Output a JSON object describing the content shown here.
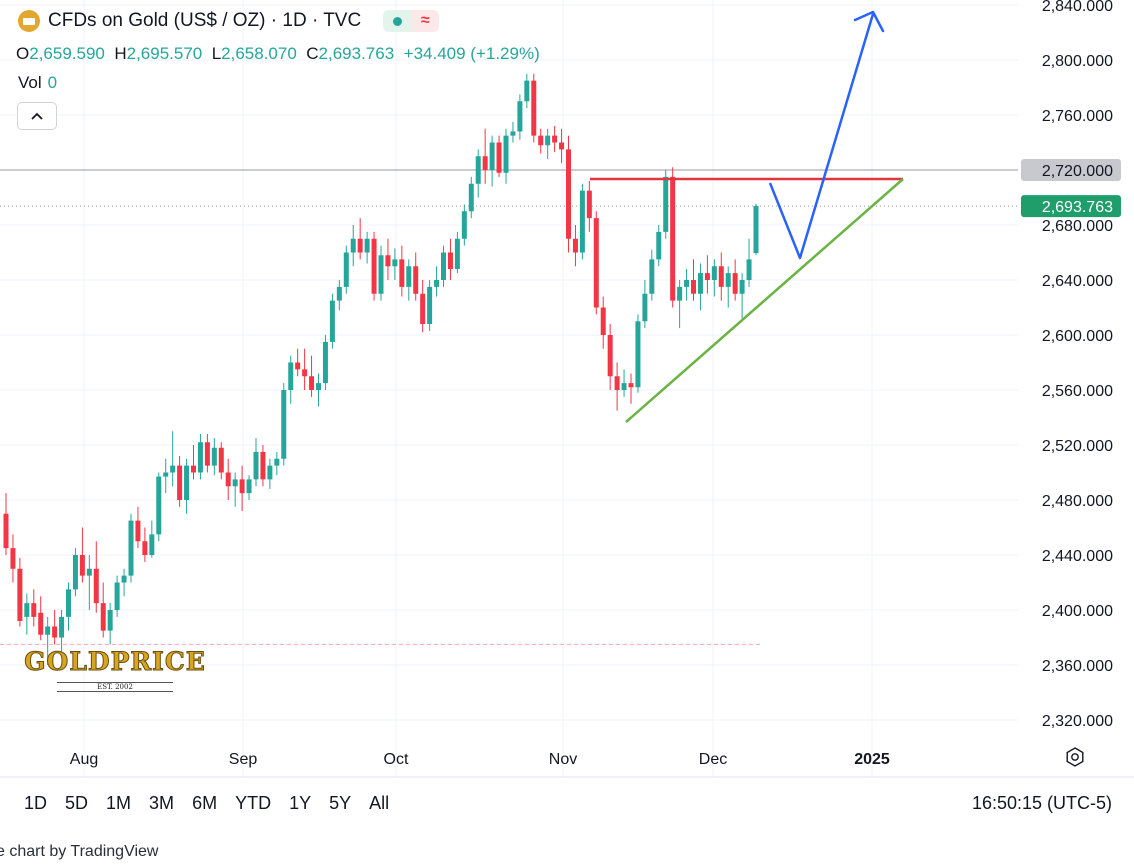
{
  "header": {
    "title": "CFDs on Gold (US$ / OZ) · 1D · TVC",
    "ohlc": {
      "o_label": "O",
      "o": "2,659.590",
      "h_label": "H",
      "h": "2,695.570",
      "l_label": "L",
      "l": "2,658.070",
      "c_label": "C",
      "c": "2,693.763",
      "change": "+34.409 (+1.29%)"
    },
    "vol_label": "Vol",
    "vol_value": "0"
  },
  "colors": {
    "up": "#26a69a",
    "down": "#f23645",
    "blue_line": "#2962ff",
    "green_line": "#6ab344",
    "red_line": "#e0363f"
  },
  "logo": {
    "name": "GOLDPRICE",
    "est": "EST. 2002"
  },
  "ranges": [
    "1D",
    "5D",
    "1M",
    "3M",
    "6M",
    "YTD",
    "1Y",
    "5Y",
    "All"
  ],
  "clock": "16:50:15 (UTC-5)",
  "credit": "e chart by TradingView",
  "chart_data": {
    "type": "candlestick",
    "ylim": [
      2300,
      2840
    ],
    "y_ticks": [
      "2,320.000",
      "2,360.000",
      "2,400.000",
      "2,440.000",
      "2,480.000",
      "2,520.000",
      "2,560.000",
      "2,600.000",
      "2,640.000",
      "2,680.000",
      "2,720.000",
      "2,760.000",
      "2,800.000",
      "2,840.000"
    ],
    "x_labels": [
      "Aug",
      "Sep",
      "Oct",
      "Nov",
      "Dec",
      "2025"
    ],
    "price_labels": [
      {
        "value": 2720.0,
        "text": "2,720.000",
        "style": "gray"
      },
      {
        "value": 2693.763,
        "text": "2,693.763",
        "style": "green"
      }
    ],
    "horizontal_lines": [
      {
        "value": 2720,
        "style": "gray-solid"
      },
      {
        "value": 2693.763,
        "style": "gray-dotted"
      },
      {
        "value": 2375,
        "style": "pink-dashed"
      }
    ],
    "candles": [
      {
        "o": 2470,
        "h": 2485,
        "l": 2440,
        "c": 2445
      },
      {
        "o": 2445,
        "h": 2455,
        "l": 2420,
        "c": 2430
      },
      {
        "o": 2430,
        "h": 2438,
        "l": 2388,
        "c": 2392
      },
      {
        "o": 2395,
        "h": 2412,
        "l": 2382,
        "c": 2405
      },
      {
        "o": 2405,
        "h": 2415,
        "l": 2388,
        "c": 2395
      },
      {
        "o": 2398,
        "h": 2410,
        "l": 2378,
        "c": 2382
      },
      {
        "o": 2382,
        "h": 2395,
        "l": 2360,
        "c": 2388
      },
      {
        "o": 2388,
        "h": 2400,
        "l": 2375,
        "c": 2380
      },
      {
        "o": 2380,
        "h": 2400,
        "l": 2370,
        "c": 2395
      },
      {
        "o": 2395,
        "h": 2420,
        "l": 2385,
        "c": 2415
      },
      {
        "o": 2415,
        "h": 2445,
        "l": 2410,
        "c": 2440
      },
      {
        "o": 2440,
        "h": 2460,
        "l": 2420,
        "c": 2425
      },
      {
        "o": 2425,
        "h": 2440,
        "l": 2400,
        "c": 2430
      },
      {
        "o": 2430,
        "h": 2450,
        "l": 2398,
        "c": 2405
      },
      {
        "o": 2405,
        "h": 2420,
        "l": 2380,
        "c": 2385
      },
      {
        "o": 2385,
        "h": 2405,
        "l": 2375,
        "c": 2400
      },
      {
        "o": 2400,
        "h": 2425,
        "l": 2395,
        "c": 2420
      },
      {
        "o": 2420,
        "h": 2430,
        "l": 2410,
        "c": 2425
      },
      {
        "o": 2425,
        "h": 2470,
        "l": 2420,
        "c": 2465
      },
      {
        "o": 2465,
        "h": 2475,
        "l": 2445,
        "c": 2450
      },
      {
        "o": 2450,
        "h": 2460,
        "l": 2435,
        "c": 2440
      },
      {
        "o": 2440,
        "h": 2465,
        "l": 2438,
        "c": 2455
      },
      {
        "o": 2455,
        "h": 2500,
        "l": 2450,
        "c": 2497
      },
      {
        "o": 2497,
        "h": 2510,
        "l": 2485,
        "c": 2500
      },
      {
        "o": 2500,
        "h": 2530,
        "l": 2490,
        "c": 2505
      },
      {
        "o": 2505,
        "h": 2512,
        "l": 2475,
        "c": 2480
      },
      {
        "o": 2480,
        "h": 2510,
        "l": 2470,
        "c": 2505
      },
      {
        "o": 2505,
        "h": 2520,
        "l": 2495,
        "c": 2500
      },
      {
        "o": 2500,
        "h": 2528,
        "l": 2495,
        "c": 2522
      },
      {
        "o": 2522,
        "h": 2528,
        "l": 2500,
        "c": 2505
      },
      {
        "o": 2505,
        "h": 2525,
        "l": 2498,
        "c": 2518
      },
      {
        "o": 2518,
        "h": 2522,
        "l": 2495,
        "c": 2500
      },
      {
        "o": 2500,
        "h": 2510,
        "l": 2480,
        "c": 2490
      },
      {
        "o": 2490,
        "h": 2500,
        "l": 2475,
        "c": 2495
      },
      {
        "o": 2495,
        "h": 2505,
        "l": 2472,
        "c": 2485
      },
      {
        "o": 2485,
        "h": 2498,
        "l": 2480,
        "c": 2495
      },
      {
        "o": 2495,
        "h": 2525,
        "l": 2490,
        "c": 2515
      },
      {
        "o": 2515,
        "h": 2520,
        "l": 2490,
        "c": 2495
      },
      {
        "o": 2495,
        "h": 2510,
        "l": 2488,
        "c": 2505
      },
      {
        "o": 2505,
        "h": 2515,
        "l": 2498,
        "c": 2510
      },
      {
        "o": 2510,
        "h": 2565,
        "l": 2505,
        "c": 2560
      },
      {
        "o": 2560,
        "h": 2585,
        "l": 2550,
        "c": 2580
      },
      {
        "o": 2580,
        "h": 2590,
        "l": 2570,
        "c": 2575
      },
      {
        "o": 2575,
        "h": 2590,
        "l": 2560,
        "c": 2570
      },
      {
        "o": 2570,
        "h": 2585,
        "l": 2555,
        "c": 2560
      },
      {
        "o": 2560,
        "h": 2572,
        "l": 2548,
        "c": 2565
      },
      {
        "o": 2565,
        "h": 2600,
        "l": 2560,
        "c": 2595
      },
      {
        "o": 2595,
        "h": 2630,
        "l": 2590,
        "c": 2625
      },
      {
        "o": 2625,
        "h": 2640,
        "l": 2618,
        "c": 2635
      },
      {
        "o": 2635,
        "h": 2665,
        "l": 2630,
        "c": 2660
      },
      {
        "o": 2660,
        "h": 2680,
        "l": 2650,
        "c": 2670
      },
      {
        "o": 2670,
        "h": 2685,
        "l": 2655,
        "c": 2660
      },
      {
        "o": 2660,
        "h": 2675,
        "l": 2652,
        "c": 2670
      },
      {
        "o": 2670,
        "h": 2675,
        "l": 2625,
        "c": 2630
      },
      {
        "o": 2630,
        "h": 2665,
        "l": 2625,
        "c": 2658
      },
      {
        "o": 2658,
        "h": 2670,
        "l": 2640,
        "c": 2650
      },
      {
        "o": 2650,
        "h": 2663,
        "l": 2640,
        "c": 2655
      },
      {
        "o": 2655,
        "h": 2665,
        "l": 2628,
        "c": 2635
      },
      {
        "o": 2635,
        "h": 2655,
        "l": 2625,
        "c": 2650
      },
      {
        "o": 2650,
        "h": 2660,
        "l": 2625,
        "c": 2630
      },
      {
        "o": 2630,
        "h": 2640,
        "l": 2602,
        "c": 2608
      },
      {
        "o": 2608,
        "h": 2640,
        "l": 2603,
        "c": 2635
      },
      {
        "o": 2635,
        "h": 2650,
        "l": 2628,
        "c": 2640
      },
      {
        "o": 2640,
        "h": 2665,
        "l": 2635,
        "c": 2660
      },
      {
        "o": 2660,
        "h": 2670,
        "l": 2640,
        "c": 2648
      },
      {
        "o": 2648,
        "h": 2675,
        "l": 2645,
        "c": 2670
      },
      {
        "o": 2670,
        "h": 2695,
        "l": 2665,
        "c": 2690
      },
      {
        "o": 2690,
        "h": 2715,
        "l": 2685,
        "c": 2710
      },
      {
        "o": 2710,
        "h": 2735,
        "l": 2700,
        "c": 2730
      },
      {
        "o": 2730,
        "h": 2750,
        "l": 2710,
        "c": 2720
      },
      {
        "o": 2720,
        "h": 2745,
        "l": 2708,
        "c": 2740
      },
      {
        "o": 2740,
        "h": 2745,
        "l": 2715,
        "c": 2718
      },
      {
        "o": 2718,
        "h": 2750,
        "l": 2710,
        "c": 2745
      },
      {
        "o": 2745,
        "h": 2755,
        "l": 2740,
        "c": 2748
      },
      {
        "o": 2748,
        "h": 2775,
        "l": 2742,
        "c": 2770
      },
      {
        "o": 2770,
        "h": 2790,
        "l": 2765,
        "c": 2785
      },
      {
        "o": 2785,
        "h": 2790,
        "l": 2740,
        "c": 2745
      },
      {
        "o": 2745,
        "h": 2750,
        "l": 2732,
        "c": 2738
      },
      {
        "o": 2738,
        "h": 2750,
        "l": 2728,
        "c": 2745
      },
      {
        "o": 2745,
        "h": 2752,
        "l": 2733,
        "c": 2740
      },
      {
        "o": 2740,
        "h": 2750,
        "l": 2725,
        "c": 2735
      },
      {
        "o": 2735,
        "h": 2745,
        "l": 2660,
        "c": 2670
      },
      {
        "o": 2670,
        "h": 2680,
        "l": 2650,
        "c": 2660
      },
      {
        "o": 2660,
        "h": 2710,
        "l": 2655,
        "c": 2705
      },
      {
        "o": 2705,
        "h": 2712,
        "l": 2675,
        "c": 2685
      },
      {
        "o": 2685,
        "h": 2690,
        "l": 2615,
        "c": 2620
      },
      {
        "o": 2620,
        "h": 2628,
        "l": 2590,
        "c": 2600
      },
      {
        "o": 2600,
        "h": 2608,
        "l": 2560,
        "c": 2570
      },
      {
        "o": 2570,
        "h": 2580,
        "l": 2545,
        "c": 2560
      },
      {
        "o": 2560,
        "h": 2575,
        "l": 2555,
        "c": 2565
      },
      {
        "o": 2565,
        "h": 2572,
        "l": 2550,
        "c": 2562
      },
      {
        "o": 2562,
        "h": 2615,
        "l": 2558,
        "c": 2610
      },
      {
        "o": 2610,
        "h": 2640,
        "l": 2605,
        "c": 2630
      },
      {
        "o": 2630,
        "h": 2662,
        "l": 2625,
        "c": 2655
      },
      {
        "o": 2655,
        "h": 2680,
        "l": 2650,
        "c": 2675
      },
      {
        "o": 2675,
        "h": 2720,
        "l": 2670,
        "c": 2715
      },
      {
        "o": 2715,
        "h": 2722,
        "l": 2620,
        "c": 2625
      },
      {
        "o": 2625,
        "h": 2640,
        "l": 2605,
        "c": 2635
      },
      {
        "o": 2635,
        "h": 2648,
        "l": 2625,
        "c": 2640
      },
      {
        "o": 2640,
        "h": 2655,
        "l": 2625,
        "c": 2630
      },
      {
        "o": 2630,
        "h": 2652,
        "l": 2618,
        "c": 2645
      },
      {
        "o": 2645,
        "h": 2658,
        "l": 2630,
        "c": 2640
      },
      {
        "o": 2640,
        "h": 2655,
        "l": 2628,
        "c": 2650
      },
      {
        "o": 2650,
        "h": 2660,
        "l": 2625,
        "c": 2635
      },
      {
        "o": 2635,
        "h": 2650,
        "l": 2620,
        "c": 2645
      },
      {
        "o": 2645,
        "h": 2655,
        "l": 2625,
        "c": 2630
      },
      {
        "o": 2630,
        "h": 2645,
        "l": 2612,
        "c": 2640
      },
      {
        "o": 2640,
        "h": 2670,
        "l": 2635,
        "c": 2655
      },
      {
        "o": 2659.59,
        "h": 2695.57,
        "l": 2658.07,
        "c": 2693.763
      }
    ]
  }
}
